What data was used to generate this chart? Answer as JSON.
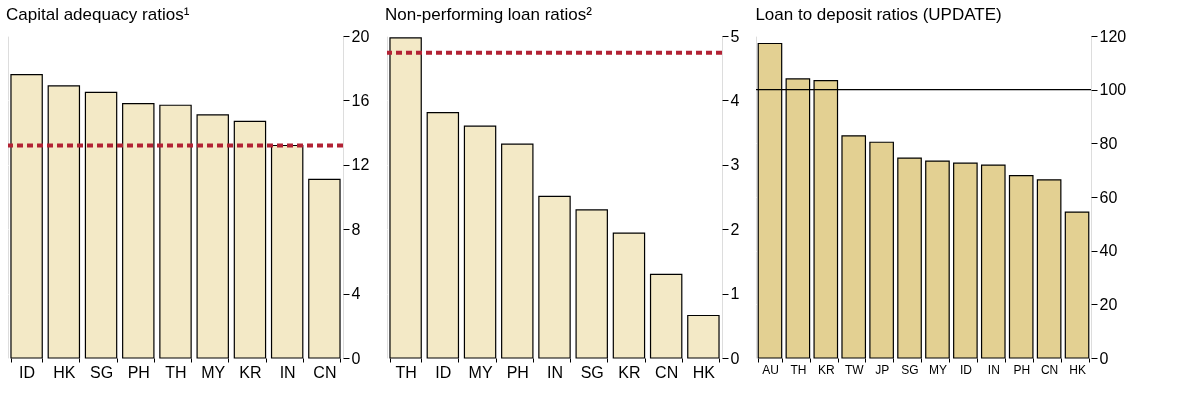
{
  "chart_data": [
    {
      "type": "bar",
      "title": "Capital adequacy ratios¹",
      "categories": [
        "ID",
        "HK",
        "SG",
        "PH",
        "TH",
        "MY",
        "KR",
        "IN",
        "CN"
      ],
      "values": [
        17.6,
        16.9,
        16.5,
        15.8,
        15.7,
        15.1,
        14.7,
        13.2,
        11.1
      ],
      "color": "#f3e9c6",
      "ylim": [
        0,
        20
      ],
      "yticks": [
        0,
        4,
        8,
        12,
        16,
        20
      ],
      "grid": true,
      "ref_lines": [
        {
          "axis": "y",
          "value": 13.2,
          "color": "#b22234",
          "line_style": "dashed"
        }
      ]
    },
    {
      "type": "bar",
      "title": "Non-performing loan ratios²",
      "categories": [
        "TH",
        "ID",
        "MY",
        "PH",
        "IN",
        "SG",
        "KR",
        "CN",
        "HK"
      ],
      "values": [
        4.97,
        3.81,
        3.6,
        3.32,
        2.51,
        2.3,
        1.94,
        1.3,
        0.66
      ],
      "color": "#f3e9c6",
      "ylim": [
        0,
        5
      ],
      "yticks": [
        0,
        1,
        2,
        3,
        4,
        5
      ],
      "grid": true,
      "ref_lines": [
        {
          "axis": "y",
          "value": 4.74,
          "color": "#b22234",
          "line_style": "dashed"
        }
      ]
    },
    {
      "type": "bar",
      "title": "Loan to deposit ratios (UPDATE)",
      "categories": [
        "AU",
        "TH",
        "KR",
        "TW",
        "JP",
        "SG",
        "MY",
        "ID",
        "IN",
        "PH",
        "CN",
        "HK"
      ],
      "values": [
        117.2,
        104.0,
        103.4,
        82.8,
        80.4,
        74.5,
        73.4,
        72.6,
        71.9,
        68.0,
        66.4,
        54.4
      ],
      "color": "#e3d092",
      "ylim": [
        0,
        120
      ],
      "yticks": [
        0,
        20,
        40,
        60,
        80,
        100,
        120
      ],
      "grid": true,
      "ref_lines": [
        {
          "axis": "y",
          "value": 100,
          "color": "#000000",
          "line_style": "solid"
        }
      ]
    }
  ]
}
